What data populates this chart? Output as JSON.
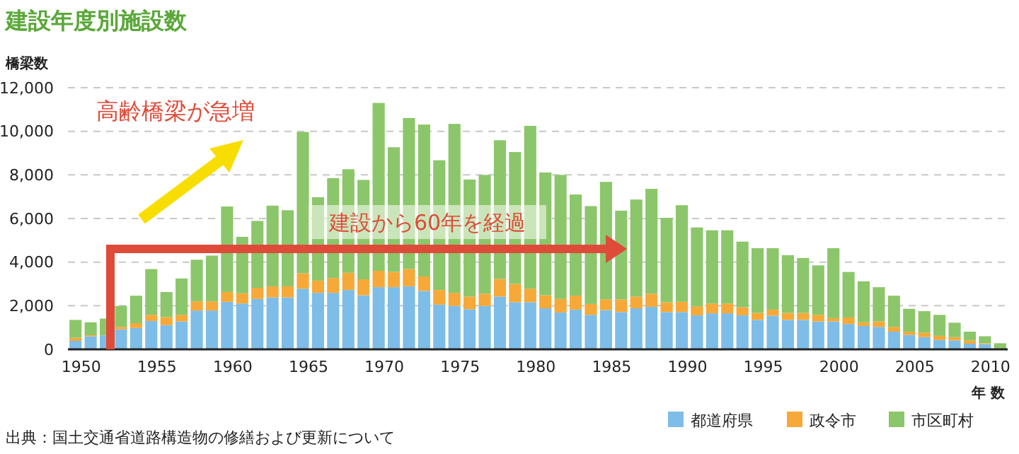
{
  "chart_data": {
    "type": "bar",
    "title": "建設年度別施設数",
    "ylabel": "橋梁数",
    "xlabel": "年 数",
    "categories": [
      "1950",
      null,
      null,
      null,
      null,
      "1955",
      null,
      null,
      null,
      null,
      "1960",
      null,
      null,
      null,
      null,
      "1965",
      null,
      null,
      null,
      null,
      "1970",
      null,
      null,
      null,
      null,
      "1975",
      null,
      null,
      null,
      null,
      "1980",
      null,
      null,
      null,
      null,
      "1985",
      null,
      null,
      null,
      null,
      "1990",
      null,
      null,
      null,
      null,
      "1995",
      null,
      null,
      null,
      null,
      "2000",
      null,
      null,
      null,
      null,
      "2005",
      null,
      null,
      null,
      null,
      "2010",
      null
    ],
    "stacked": true,
    "series": [
      {
        "name": "都道府県",
        "color": "#7dbde8",
        "values": [
          390,
          600,
          640,
          920,
          980,
          1300,
          1110,
          1280,
          1780,
          1780,
          2180,
          2100,
          2310,
          2380,
          2380,
          2780,
          2590,
          2590,
          2720,
          2480,
          2850,
          2850,
          2890,
          2680,
          2050,
          1990,
          1840,
          1990,
          2420,
          2160,
          2160,
          1880,
          1690,
          1820,
          1580,
          1800,
          1710,
          1880,
          1950,
          1710,
          1710,
          1560,
          1650,
          1650,
          1560,
          1350,
          1540,
          1350,
          1350,
          1280,
          1280,
          1160,
          1070,
          1030,
          810,
          660,
          560,
          430,
          410,
          260,
          240,
          0
        ]
      },
      {
        "name": "政令市",
        "color": "#f6a938",
        "values": [
          140,
          50,
          null,
          110,
          220,
          280,
          370,
          300,
          420,
          420,
          450,
          470,
          510,
          510,
          510,
          710,
          560,
          680,
          790,
          730,
          750,
          700,
          790,
          660,
          670,
          600,
          580,
          560,
          810,
          840,
          620,
          600,
          620,
          640,
          500,
          490,
          580,
          540,
          600,
          450,
          470,
          410,
          450,
          450,
          370,
          320,
          280,
          320,
          320,
          300,
          150,
          300,
          170,
          250,
          220,
          150,
          210,
          190,
          150,
          150,
          40,
          0
        ]
      },
      {
        "name": "市区町村",
        "color": "#8cc66a",
        "values": [
          820,
          590,
          770,
          960,
          1260,
          2100,
          1150,
          1670,
          1910,
          2100,
          3920,
          2590,
          3070,
          3700,
          3490,
          6480,
          3830,
          4580,
          4750,
          4560,
          7700,
          5720,
          6930,
          6970,
          5950,
          7750,
          5370,
          5450,
          6360,
          6050,
          7470,
          5630,
          5690,
          4640,
          4490,
          5390,
          4070,
          4450,
          4810,
          3870,
          4430,
          3620,
          3360,
          3360,
          3010,
          2970,
          2820,
          2650,
          2520,
          2270,
          3210,
          2090,
          1880,
          1570,
          1430,
          1050,
          980,
          960,
          660,
          400,
          320,
          280
        ]
      }
    ],
    "ylim": [
      0,
      12000
    ],
    "yticks": [
      0,
      {
        "value": 2000,
        "label": "2,000"
      },
      {
        "value": 4000,
        "label": "4,000"
      },
      {
        "value": 6000,
        "label": "6,000"
      },
      {
        "value": 8000,
        "label": "8,000"
      },
      {
        "value": 10000,
        "label": "10,000"
      },
      {
        "value": 12000,
        "label": "12,000"
      }
    ],
    "grid": "y",
    "legend": "bottom right",
    "annotations": [
      "高齢橋梁が急増",
      "建設から60年を経過",
      "出典：国土交通省道路構造物の修繕および更新について"
    ]
  }
}
